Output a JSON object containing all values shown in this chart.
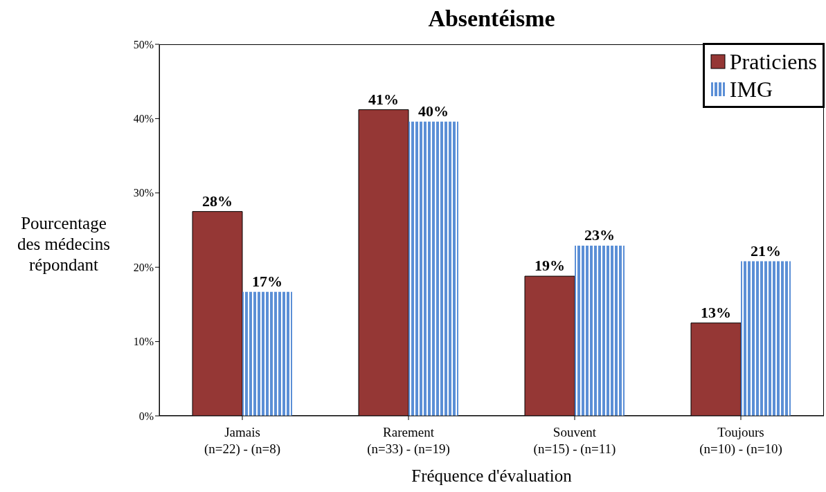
{
  "chart_data": {
    "type": "bar",
    "title": "Absentéisme",
    "xlabel": "Fréquence d'évaluation",
    "ylabel": "Pourcentage\ndes médecins\nrépondant",
    "categories": [
      "Jamais\n(n=22) - (n=8)",
      "Rarement\n(n=33) - (n=19)",
      "Souvent\n(n=15) - (n=11)",
      "Toujours\n(n=10) - (n=10)"
    ],
    "series": [
      {
        "name": "Praticiens",
        "color": "#953735",
        "values": [
          27.5,
          41.2,
          18.8,
          12.5
        ],
        "value_labels": [
          "28%",
          "41%",
          "19%",
          "13%"
        ]
      },
      {
        "name": "IMG",
        "color": "#5b8fd6",
        "values": [
          16.7,
          39.6,
          22.9,
          20.8
        ],
        "value_labels": [
          "17%",
          "40%",
          "23%",
          "21%"
        ]
      }
    ],
    "ylim": [
      0,
      50
    ],
    "yticks": [
      {
        "value": 0,
        "label": "0%"
      },
      {
        "value": 10,
        "label": "10%"
      },
      {
        "value": 20,
        "label": "20%"
      },
      {
        "value": 30,
        "label": "30%"
      },
      {
        "value": 40,
        "label": "40%"
      },
      {
        "value": 50,
        "label": "50%"
      }
    ],
    "grid": false,
    "legend": "top right"
  }
}
